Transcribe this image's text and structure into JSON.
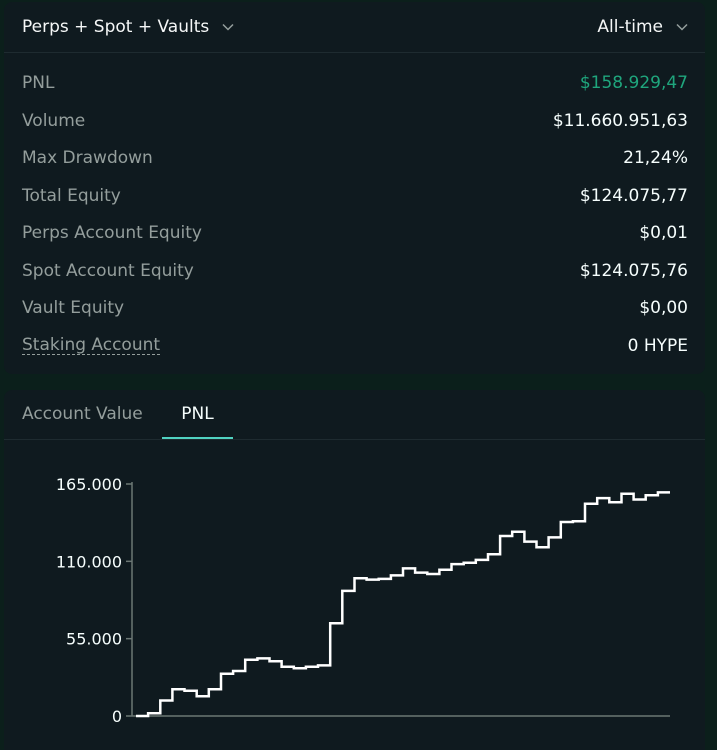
{
  "header": {
    "scope_label": "Perps + Spot + Vaults",
    "range_label": "All-time"
  },
  "stats": [
    {
      "label": "PNL",
      "value": "$158.929,47",
      "positive": true
    },
    {
      "label": "Volume",
      "value": "$11.660.951,63"
    },
    {
      "label": "Max Drawdown",
      "value": "21,24%"
    },
    {
      "label": "Total Equity",
      "value": "$124.075,77"
    },
    {
      "label": "Perps Account Equity",
      "value": "$0,01"
    },
    {
      "label": "Spot Account Equity",
      "value": "$124.075,76"
    },
    {
      "label": "Vault Equity",
      "value": "$0,00"
    },
    {
      "label": "Staking Account",
      "value": "0 HYPE",
      "dashed": true
    }
  ],
  "tabs": [
    {
      "label": "Account Value",
      "active": false
    },
    {
      "label": "PNL",
      "active": true
    }
  ],
  "colors": {
    "positive": "#1fa67d",
    "accent": "#50d2c1",
    "line": "#ffffff"
  },
  "chart_data": {
    "type": "line",
    "step": true,
    "title": "",
    "xlabel": "",
    "ylabel": "",
    "ylim": [
      0,
      165000
    ],
    "yticks": [
      0,
      55000,
      110000,
      165000
    ],
    "ytick_labels": [
      "0",
      "55.000",
      "110.000",
      "165.000"
    ],
    "grid": false,
    "series": [
      {
        "values": [
          0,
          2000,
          11000,
          19000,
          18000,
          14000,
          19000,
          30000,
          32000,
          40000,
          41000,
          39000,
          35000,
          34000,
          35000,
          36000,
          66000,
          89000,
          98000,
          97000,
          97500,
          100000,
          105000,
          102000,
          101000,
          104000,
          108000,
          109000,
          111000,
          115000,
          128000,
          131000,
          124000,
          120000,
          127000,
          138000,
          138500,
          151000,
          155000,
          152000,
          158000,
          154000,
          157000,
          159000
        ]
      }
    ]
  }
}
